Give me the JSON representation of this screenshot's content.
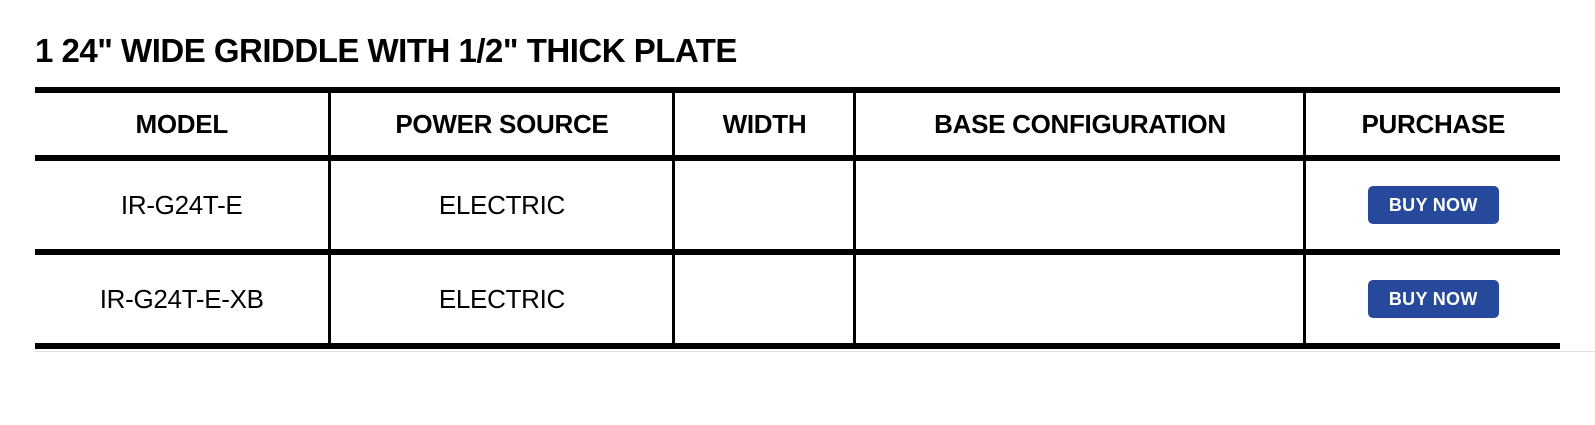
{
  "page": {
    "title": "1 24\" WIDE GRIDDLE WITH 1/2\" THICK PLATE"
  },
  "table": {
    "columns": [
      "MODEL",
      "POWER SOURCE",
      "WIDTH",
      "BASE CONFIGURATION",
      "PURCHASE"
    ],
    "rows": [
      {
        "model": "IR-G24T-E",
        "power_source": "ELECTRIC",
        "width": "",
        "base_configuration": "",
        "purchase_label": "BUY NOW"
      },
      {
        "model": "IR-G24T-E-XB",
        "power_source": "ELECTRIC",
        "width": "",
        "base_configuration": "",
        "purchase_label": "BUY NOW"
      }
    ]
  },
  "colors": {
    "button_background": "#26499B",
    "button_text": "#FFFFFF",
    "table_border": "#000000",
    "footer_divider": "#E0E0E0"
  }
}
